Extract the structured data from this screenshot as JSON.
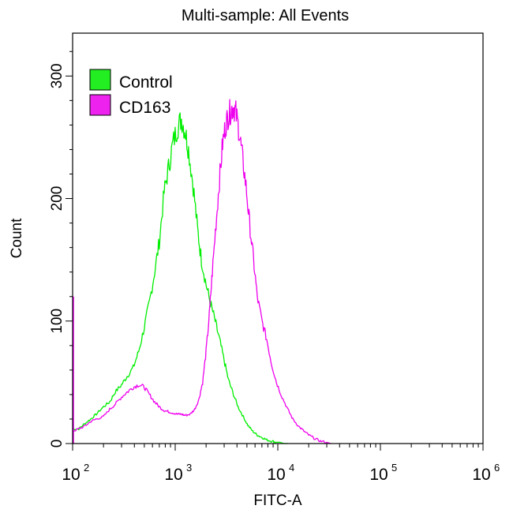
{
  "chart_data": {
    "type": "line",
    "title": "Multi-sample: All Events",
    "xlabel": "FITC-A",
    "ylabel": "Count",
    "x_scale": "log",
    "xlim": [
      100,
      1000000
    ],
    "ylim": [
      0,
      335
    ],
    "y_ticks": [
      0,
      100,
      200,
      300
    ],
    "x_ticks": [
      {
        "value": 100,
        "base": "10",
        "exp": "2"
      },
      {
        "value": 1000,
        "base": "10",
        "exp": "3"
      },
      {
        "value": 10000,
        "base": "10",
        "exp": "4"
      },
      {
        "value": 100000,
        "base": "10",
        "exp": "5"
      },
      {
        "value": 1000000,
        "base": "10",
        "exp": "6"
      }
    ],
    "grid": false,
    "legend_position": "top-left",
    "series": [
      {
        "name": "Control",
        "color": "#00ee00",
        "legend_swatch": "#22ee22",
        "x": [
          100,
          115,
          130,
          150,
          170,
          200,
          230,
          260,
          300,
          340,
          390,
          440,
          500,
          560,
          630,
          700,
          780,
          860,
          950,
          1050,
          1150,
          1250,
          1350,
          1500,
          1650,
          1800,
          2000,
          2200,
          2450,
          2700,
          3000,
          3300,
          3700,
          4100,
          4600,
          5100,
          5700,
          6300,
          7000,
          7800,
          8700,
          9700,
          10500,
          11500,
          12500
        ],
        "values": [
          12,
          12,
          16,
          20,
          24,
          30,
          34,
          42,
          48,
          55,
          62,
          75,
          95,
          115,
          140,
          165,
          205,
          225,
          245,
          258,
          265,
          255,
          240,
          210,
          175,
          150,
          130,
          115,
          100,
          85,
          68,
          52,
          40,
          30,
          22,
          15,
          10,
          7,
          5,
          3,
          2,
          1,
          1,
          0,
          0
        ]
      },
      {
        "name": "CD163",
        "color": "#ee00ee",
        "legend_swatch": "#ee22ee",
        "x": [
          100,
          115,
          130,
          150,
          170,
          200,
          230,
          260,
          300,
          340,
          390,
          440,
          500,
          560,
          630,
          700,
          780,
          860,
          950,
          1050,
          1150,
          1250,
          1400,
          1550,
          1700,
          1850,
          2000,
          2150,
          2300,
          2500,
          2700,
          2900,
          3100,
          3300,
          3500,
          3700,
          3900,
          4200,
          4500,
          4900,
          5300,
          5800,
          6300,
          7000,
          7800,
          8700,
          9700,
          11000,
          12500,
          14000,
          16000,
          18000,
          20000,
          23000,
          26000,
          30000,
          33000
        ],
        "values": [
          10,
          12,
          14,
          18,
          20,
          22,
          28,
          32,
          38,
          42,
          46,
          48,
          46,
          40,
          34,
          30,
          27,
          26,
          25,
          24,
          24,
          23,
          24,
          28,
          36,
          50,
          75,
          105,
          140,
          180,
          215,
          245,
          260,
          268,
          272,
          275,
          270,
          255,
          235,
          210,
          180,
          150,
          120,
          100,
          85,
          65,
          50,
          38,
          28,
          20,
          14,
          10,
          7,
          4,
          2,
          1,
          0
        ]
      }
    ]
  }
}
